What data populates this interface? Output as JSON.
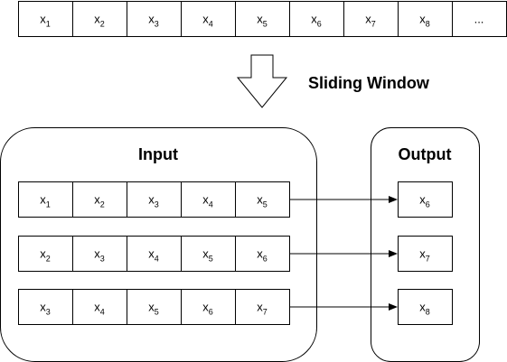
{
  "sequence": {
    "cells": [
      {
        "base": "x",
        "sub": "1"
      },
      {
        "base": "x",
        "sub": "2"
      },
      {
        "base": "x",
        "sub": "3"
      },
      {
        "base": "x",
        "sub": "4"
      },
      {
        "base": "x",
        "sub": "5"
      },
      {
        "base": "x",
        "sub": "6"
      },
      {
        "base": "x",
        "sub": "7"
      },
      {
        "base": "x",
        "sub": "8"
      },
      {
        "base": "...",
        "sub": ""
      }
    ]
  },
  "sliding_window_label": "Sliding Window",
  "input": {
    "title": "Input",
    "rows": [
      [
        {
          "base": "x",
          "sub": "1"
        },
        {
          "base": "x",
          "sub": "2"
        },
        {
          "base": "x",
          "sub": "3"
        },
        {
          "base": "x",
          "sub": "4"
        },
        {
          "base": "x",
          "sub": "5"
        }
      ],
      [
        {
          "base": "x",
          "sub": "2"
        },
        {
          "base": "x",
          "sub": "3"
        },
        {
          "base": "x",
          "sub": "4"
        },
        {
          "base": "x",
          "sub": "5"
        },
        {
          "base": "x",
          "sub": "6"
        }
      ],
      [
        {
          "base": "x",
          "sub": "3"
        },
        {
          "base": "x",
          "sub": "4"
        },
        {
          "base": "x",
          "sub": "5"
        },
        {
          "base": "x",
          "sub": "6"
        },
        {
          "base": "x",
          "sub": "7"
        }
      ]
    ]
  },
  "output": {
    "title": "Output",
    "cells": [
      {
        "base": "x",
        "sub": "6"
      },
      {
        "base": "x",
        "sub": "7"
      },
      {
        "base": "x",
        "sub": "8"
      }
    ]
  },
  "colors": {
    "stroke": "#000000",
    "fill": "#ffffff"
  }
}
